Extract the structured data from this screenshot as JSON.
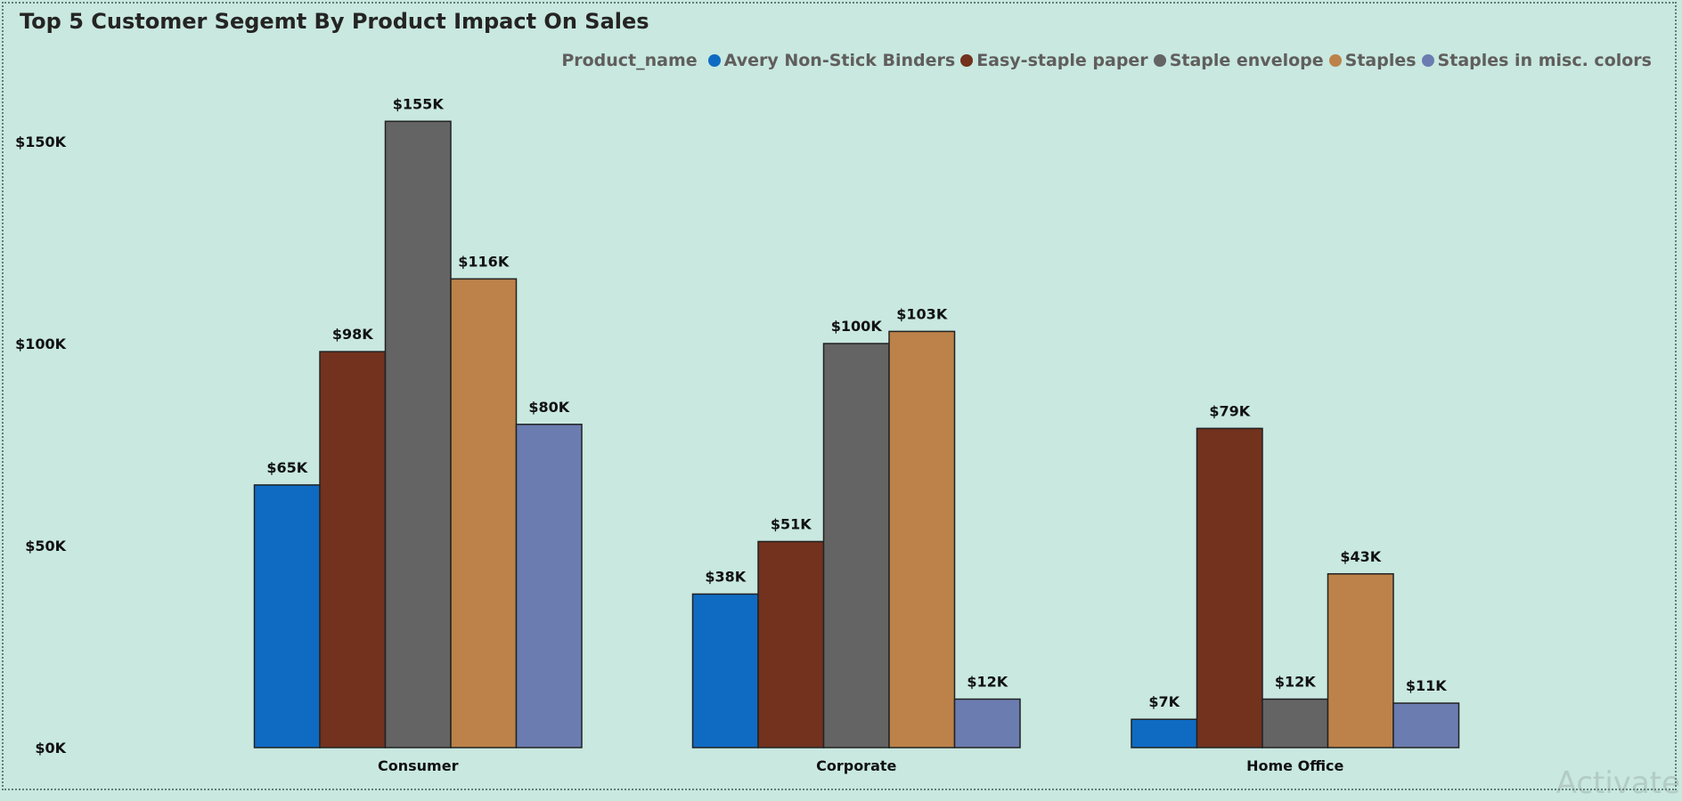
{
  "chart_data": {
    "type": "bar",
    "title": "Top 5 Customer Segemt By Product Impact On Sales",
    "legend_title": "Product_name",
    "legend_position": "top-right",
    "categories": [
      "Consumer",
      "Corporate",
      "Home Office"
    ],
    "series": [
      {
        "name": "Avery Non-Stick Binders",
        "color": "#0f6bc2",
        "values": [
          65,
          38,
          7
        ],
        "labels": [
          "$65K",
          "$38K",
          "$7K"
        ]
      },
      {
        "name": "Easy-staple paper",
        "color": "#72321e",
        "values": [
          98,
          51,
          79
        ],
        "labels": [
          "$98K",
          "$51K",
          "$79K"
        ]
      },
      {
        "name": "Staple envelope",
        "color": "#646464",
        "values": [
          155,
          100,
          12
        ],
        "labels": [
          "$155K",
          "$100K",
          "$12K"
        ]
      },
      {
        "name": "Staples",
        "color": "#bc8249",
        "values": [
          116,
          103,
          43
        ],
        "labels": [
          "$116K",
          "$103K",
          "$43K"
        ]
      },
      {
        "name": "Staples in misc. colors",
        "color": "#6b7cb0",
        "values": [
          80,
          12,
          11
        ],
        "labels": [
          "$80K",
          "$12K",
          "$11K"
        ]
      }
    ],
    "yticks": [
      {
        "value": 0,
        "label": "$0K"
      },
      {
        "value": 50,
        "label": "$50K"
      },
      {
        "value": 100,
        "label": "$100K"
      },
      {
        "value": 150,
        "label": "$150K"
      }
    ],
    "ylim": [
      0,
      155
    ],
    "grid": false
  },
  "watermark": "Activate"
}
